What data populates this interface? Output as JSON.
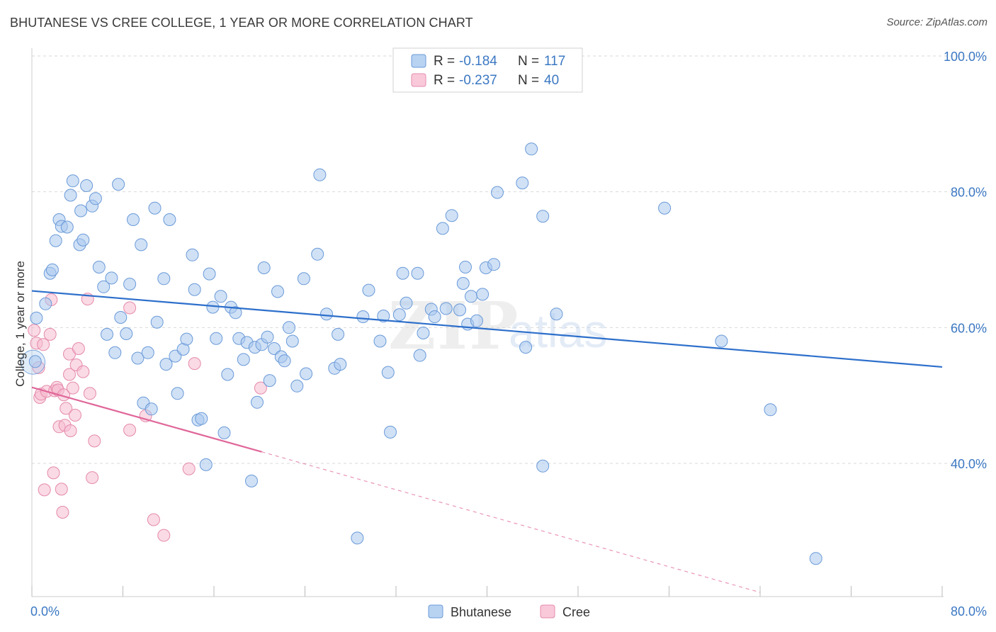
{
  "title": "BHUTANESE VS CREE COLLEGE, 1 YEAR OR MORE CORRELATION CHART",
  "source": "Source: ZipAtlas.com",
  "watermark": {
    "zip": "ZIP",
    "atlas": "atlas"
  },
  "colors": {
    "blue_fill": "#a9c8ef",
    "blue_stroke": "#6a9ad8",
    "blue_line": "#2d6fcb",
    "pink_fill": "#f6bcd0",
    "pink_stroke": "#e58aab",
    "pink_line": "#e0679a",
    "grid": "#d9d9d9",
    "axis_text": "#3b78c3"
  },
  "legend": {
    "rows": [
      {
        "r_label": "R = ",
        "r_value": "-0.184",
        "n_label": "N = ",
        "n_value": "117"
      },
      {
        "r_label": "R = ",
        "r_value": "-0.237",
        "n_label": "N = ",
        "n_value": "40"
      }
    ]
  },
  "chart_data": {
    "type": "scatter",
    "title": "BHUTANESE VS CREE COLLEGE, 1 YEAR OR MORE CORRELATION CHART",
    "xlabel": "",
    "ylabel": "College, 1 year or more",
    "xlim": [
      0,
      80
    ],
    "ylim": [
      20,
      102
    ],
    "x_ticks": [
      0,
      8,
      16,
      24,
      32,
      40,
      48,
      56,
      64,
      72,
      80
    ],
    "x_tick_labels": {
      "left": "0.0%",
      "right": "80.0%"
    },
    "y_ticks": [
      40,
      60,
      80,
      100
    ],
    "y_tick_labels": [
      "40.0%",
      "60.0%",
      "80.0%",
      "100.0%"
    ],
    "grid": true,
    "legend_position": "top-center",
    "series": [
      {
        "name": "Bhutanese",
        "r": -0.184,
        "n": 117,
        "trend": {
          "x": [
            0,
            80
          ],
          "y": [
            65.4,
            54.2
          ]
        },
        "points": [
          [
            0.3,
            55.0
          ],
          [
            0.4,
            61.4
          ],
          [
            1.2,
            63.5
          ],
          [
            1.6,
            68.0
          ],
          [
            1.8,
            68.5
          ],
          [
            2.1,
            72.8
          ],
          [
            2.4,
            75.9
          ],
          [
            2.6,
            74.9
          ],
          [
            3.1,
            74.8
          ],
          [
            3.4,
            79.5
          ],
          [
            3.6,
            81.6
          ],
          [
            4.2,
            72.2
          ],
          [
            4.3,
            77.2
          ],
          [
            4.5,
            72.9
          ],
          [
            4.8,
            80.9
          ],
          [
            5.3,
            77.9
          ],
          [
            5.6,
            79.0
          ],
          [
            5.9,
            68.9
          ],
          [
            6.3,
            66.0
          ],
          [
            6.6,
            59.0
          ],
          [
            7.0,
            67.3
          ],
          [
            7.3,
            56.3
          ],
          [
            7.6,
            81.1
          ],
          [
            7.8,
            61.5
          ],
          [
            8.3,
            59.1
          ],
          [
            8.6,
            66.4
          ],
          [
            8.9,
            75.9
          ],
          [
            9.3,
            55.5
          ],
          [
            9.6,
            72.2
          ],
          [
            9.8,
            48.9
          ],
          [
            10.2,
            56.3
          ],
          [
            10.5,
            48.0
          ],
          [
            10.8,
            77.6
          ],
          [
            11.0,
            60.8
          ],
          [
            11.6,
            67.2
          ],
          [
            11.8,
            54.6
          ],
          [
            12.1,
            75.9
          ],
          [
            12.6,
            55.8
          ],
          [
            12.8,
            50.3
          ],
          [
            13.3,
            56.8
          ],
          [
            13.6,
            58.3
          ],
          [
            14.1,
            70.7
          ],
          [
            14.3,
            65.6
          ],
          [
            14.6,
            46.4
          ],
          [
            14.9,
            46.6
          ],
          [
            15.3,
            39.8
          ],
          [
            15.6,
            67.9
          ],
          [
            15.9,
            63.0
          ],
          [
            16.2,
            58.4
          ],
          [
            16.6,
            64.6
          ],
          [
            16.9,
            44.5
          ],
          [
            17.2,
            53.1
          ],
          [
            17.5,
            63.0
          ],
          [
            17.9,
            62.2
          ],
          [
            18.2,
            58.4
          ],
          [
            18.6,
            55.3
          ],
          [
            18.9,
            57.8
          ],
          [
            19.3,
            37.4
          ],
          [
            19.6,
            57.1
          ],
          [
            19.8,
            49.0
          ],
          [
            20.2,
            57.5
          ],
          [
            20.4,
            68.8
          ],
          [
            20.7,
            58.6
          ],
          [
            20.9,
            52.2
          ],
          [
            21.3,
            56.9
          ],
          [
            21.6,
            65.3
          ],
          [
            21.9,
            55.7
          ],
          [
            22.2,
            55.1
          ],
          [
            22.6,
            60.0
          ],
          [
            22.9,
            58.0
          ],
          [
            23.3,
            51.4
          ],
          [
            23.9,
            67.2
          ],
          [
            24.1,
            53.2
          ],
          [
            25.1,
            70.8
          ],
          [
            25.3,
            82.5
          ],
          [
            25.9,
            62.0
          ],
          [
            26.6,
            54.0
          ],
          [
            26.9,
            59.0
          ],
          [
            27.1,
            54.6
          ],
          [
            28.6,
            29.0
          ],
          [
            29.1,
            61.6
          ],
          [
            29.6,
            65.5
          ],
          [
            30.6,
            58.0
          ],
          [
            30.9,
            61.7
          ],
          [
            31.3,
            53.4
          ],
          [
            31.5,
            44.6
          ],
          [
            32.3,
            61.9
          ],
          [
            32.6,
            68.0
          ],
          [
            32.9,
            63.6
          ],
          [
            33.9,
            68.0
          ],
          [
            34.1,
            55.9
          ],
          [
            34.4,
            59.2
          ],
          [
            35.1,
            62.7
          ],
          [
            35.4,
            61.6
          ],
          [
            36.1,
            74.6
          ],
          [
            36.4,
            62.8
          ],
          [
            36.9,
            76.5
          ],
          [
            37.6,
            62.6
          ],
          [
            37.9,
            66.5
          ],
          [
            38.1,
            68.9
          ],
          [
            38.3,
            60.5
          ],
          [
            38.6,
            64.6
          ],
          [
            39.1,
            61.0
          ],
          [
            39.6,
            64.9
          ],
          [
            39.9,
            68.8
          ],
          [
            40.6,
            69.3
          ],
          [
            40.9,
            79.9
          ],
          [
            43.1,
            81.3
          ],
          [
            43.4,
            57.1
          ],
          [
            43.9,
            86.3
          ],
          [
            44.9,
            76.4
          ],
          [
            44.9,
            39.6
          ],
          [
            46.1,
            62.0
          ],
          [
            55.6,
            77.6
          ],
          [
            60.6,
            58.0
          ],
          [
            64.9,
            47.9
          ],
          [
            68.9,
            26.0
          ]
        ]
      },
      {
        "name": "Cree",
        "r": -0.237,
        "n": 40,
        "trend_solid": {
          "x": [
            0,
            20.2
          ],
          "y": [
            51.2,
            41.7
          ]
        },
        "trend_dashed": {
          "x": [
            20.2,
            64.0
          ],
          "y": [
            41.7,
            21.0
          ]
        },
        "points": [
          [
            0.2,
            59.6
          ],
          [
            0.4,
            57.7
          ],
          [
            0.6,
            54.1
          ],
          [
            0.7,
            49.7
          ],
          [
            0.8,
            50.2
          ],
          [
            1.0,
            57.5
          ],
          [
            1.1,
            36.1
          ],
          [
            1.3,
            50.6
          ],
          [
            1.6,
            59.0
          ],
          [
            1.7,
            64.1
          ],
          [
            1.9,
            38.6
          ],
          [
            2.0,
            50.7
          ],
          [
            2.2,
            51.2
          ],
          [
            2.3,
            50.8
          ],
          [
            2.4,
            45.4
          ],
          [
            2.6,
            36.2
          ],
          [
            2.7,
            32.8
          ],
          [
            2.8,
            50.1
          ],
          [
            2.9,
            45.6
          ],
          [
            3.0,
            48.1
          ],
          [
            3.3,
            53.1
          ],
          [
            3.3,
            56.1
          ],
          [
            3.4,
            44.8
          ],
          [
            3.6,
            51.1
          ],
          [
            3.8,
            47.1
          ],
          [
            3.9,
            54.5
          ],
          [
            4.1,
            56.9
          ],
          [
            4.5,
            53.5
          ],
          [
            4.9,
            64.2
          ],
          [
            5.1,
            50.3
          ],
          [
            5.3,
            37.9
          ],
          [
            5.5,
            43.3
          ],
          [
            8.6,
            62.9
          ],
          [
            8.6,
            44.9
          ],
          [
            10.7,
            31.7
          ],
          [
            11.6,
            29.4
          ],
          [
            13.8,
            39.2
          ],
          [
            14.3,
            54.7
          ],
          [
            20.1,
            51.1
          ],
          [
            10.0,
            47.0
          ]
        ]
      }
    ]
  },
  "bottom_legend": [
    "Bhutanese",
    "Cree"
  ]
}
